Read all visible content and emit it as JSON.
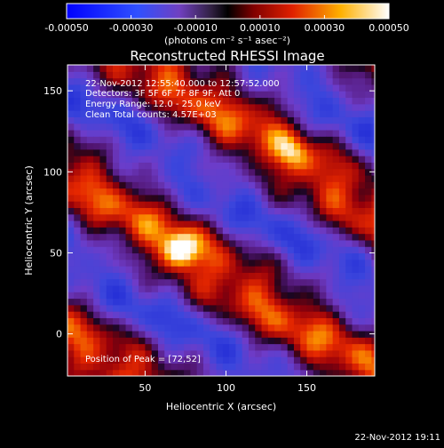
{
  "colorbar": {
    "ticks": [
      "-0.00050",
      "-0.00030",
      "-0.00010",
      "0.00010",
      "0.00030",
      "0.00050"
    ],
    "tick_values": [
      -0.0005,
      -0.0003,
      -0.0001,
      0.0001,
      0.0003,
      0.0005
    ],
    "range": [
      -0.0005,
      0.0005
    ],
    "unit_label": "(photons cm⁻² s⁻¹ asec⁻²)"
  },
  "chart_data": {
    "type": "heatmap",
    "title": "Reconstructed RHESSI Image",
    "xlabel": "Heliocentric X (arcsec)",
    "ylabel": "Heliocentric Y (arcsec)",
    "xlim": [
      2,
      192
    ],
    "ylim": [
      -26,
      166
    ],
    "x_ticks": [
      50,
      100,
      150
    ],
    "y_ticks": [
      0,
      50,
      100,
      150
    ],
    "peak_position": [
      72,
      52
    ],
    "colors": {
      "low": "#1a28c8",
      "mid": "#501060",
      "high": "#ffffff",
      "background": "#000000"
    },
    "annotations": [
      "22-Nov-2012 12:55:40.000 to 12:57:52.000",
      "Detectors: 3F 5F 6F 7F 8F 9F, Att 0",
      "Energy Range: 12.0 - 25.0 keV",
      "Clean    Total counts: 4.57E+03",
      "Position of Peak = [72,52]"
    ]
  },
  "footer": {
    "timestamp": "22-Nov-2012 19:11"
  }
}
